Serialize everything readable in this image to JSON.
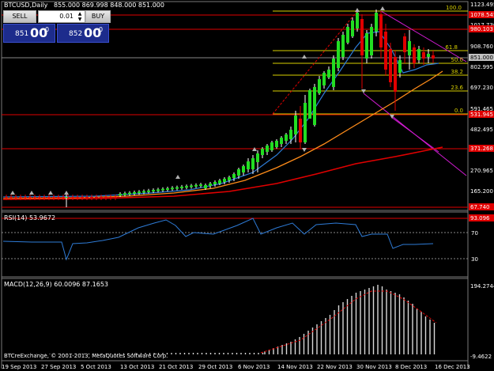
{
  "window": {
    "title": "BTCUSD,Daily",
    "ohlc": "855.000 869.998 848.000 851.000"
  },
  "trade": {
    "sell_label": "SELL",
    "buy_label": "BUY",
    "lots": "0.01",
    "sell_small": "851",
    "sell_big": "00",
    "sell_sup": "0",
    "buy_small": "852",
    "buy_big": "00",
    "buy_sup": "0"
  },
  "price_axis": [
    "1123.495",
    "1017.730",
    "908.760",
    "802.995",
    "697.230",
    "591.465",
    "482.495",
    "376.730",
    "270.965",
    "165.200"
  ],
  "price_tags": [
    {
      "text": "1078.545",
      "color": "#e00000"
    },
    {
      "text": "980.103",
      "color": "#e00000"
    },
    {
      "text": "851.000",
      "color": "#c0c0c0"
    },
    {
      "text": "531.945",
      "color": "#e00000"
    },
    {
      "text": "371.268",
      "color": "#e00000"
    },
    {
      "text": "67.740",
      "color": "#e00000"
    }
  ],
  "fibo_levels": [
    "100.0",
    "61.8",
    "50.0",
    "38.2",
    "23.6",
    "0.0"
  ],
  "rsi": {
    "label": "RSI(14) 53.9672",
    "axis": [
      "70",
      "30"
    ],
    "tag": "93.096"
  },
  "macd": {
    "label": "MACD(12,26,9) 60.0096 87.1653",
    "axis": [
      "194.2744",
      "-9.4622"
    ]
  },
  "copyright": "BTCreExchange, © 2001-2013, MetaQuotes Software Corp.",
  "date_axis": [
    "19 Sep 2013",
    "27 Sep 2013",
    "5 Oct 2013",
    "13 Oct 2013",
    "21 Oct 2013",
    "29 Oct 2013",
    "6 Nov 2013",
    "14 Nov 2013",
    "22 Nov 2013",
    "30 Nov 2013",
    "8 Dec 2013",
    "16 Dec 2013"
  ]
}
